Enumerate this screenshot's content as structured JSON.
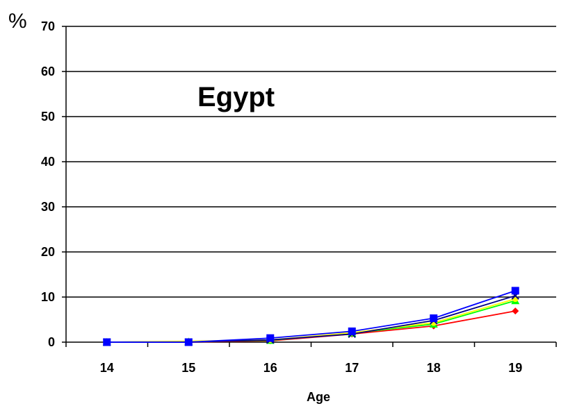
{
  "chart_data": {
    "type": "line",
    "title": "Egypt",
    "xlabel": "Age",
    "ylabel": "%",
    "categories": [
      "14",
      "15",
      "16",
      "17",
      "18",
      "19"
    ],
    "ylim": [
      0,
      70
    ],
    "yticks": [
      "0",
      "10",
      "20",
      "30",
      "40",
      "50",
      "60",
      "70"
    ],
    "grid": true,
    "legend": "none",
    "series": [
      {
        "color": "#ff0000",
        "marker": "diamond",
        "values": [
          0,
          0,
          0.3,
          1.8,
          3.6,
          6.9
        ]
      },
      {
        "color": "#00ff00",
        "marker": "triangle",
        "values": [
          0,
          0.1,
          0.4,
          2.0,
          4.0,
          9.2
        ]
      },
      {
        "color": "#ffff00",
        "marker": "circle",
        "values": [
          0,
          0.2,
          0.5,
          2.1,
          4.3,
          9.6
        ]
      },
      {
        "color": "#000080",
        "marker": "x",
        "values": [
          0,
          0,
          0.5,
          1.8,
          4.8,
          10.3
        ]
      },
      {
        "color": "#0000ff",
        "marker": "square",
        "values": [
          0,
          0,
          0.9,
          2.4,
          5.3,
          11.4
        ]
      }
    ]
  }
}
